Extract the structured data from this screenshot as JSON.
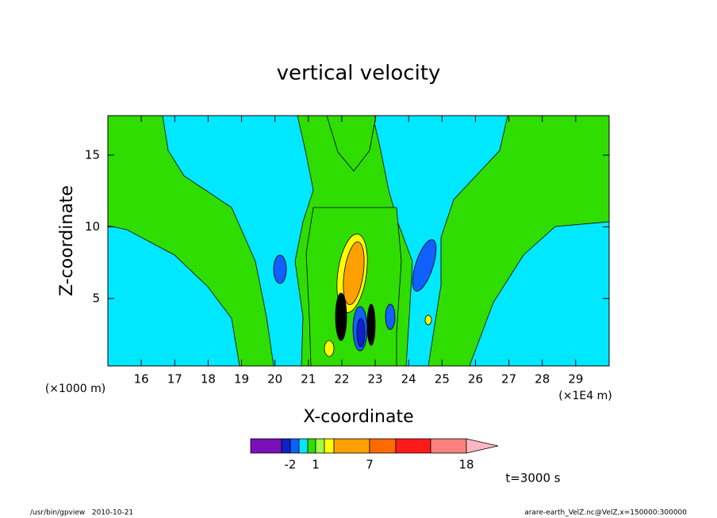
{
  "chart_data": {
    "type": "contour",
    "title": "vertical velocity",
    "xlabel": "X-coordinate",
    "ylabel": "Z-coordinate",
    "xunit": "(×1E4 m)",
    "yunit": "(×1000 m)",
    "xlim": [
      15,
      30
    ],
    "xticks": [
      16,
      17,
      18,
      19,
      20,
      21,
      22,
      23,
      24,
      25,
      26,
      27,
      28,
      29
    ],
    "ylim": [
      0.3,
      17.75
    ],
    "yticks": [
      5,
      10,
      15
    ],
    "colorbar": {
      "colors": [
        "#7a10b8",
        "#1020c8",
        "#1060ff",
        "#00e8ff",
        "#30dd00",
        "#a0ff40",
        "#ffff00",
        "#ffa000",
        "#ff6a00",
        "#ff1a1a",
        "#ff8080",
        "#ffb8c0"
      ],
      "levels": [
        null,
        null,
        -2,
        null,
        null,
        1,
        null,
        null,
        7,
        null,
        null,
        18
      ]
    },
    "annotation": "t=3000 s",
    "footer_left": "/usr/bin/gpview   2010-10-21",
    "footer_right": "arare-earth_VelZ.nc@VelZ,x=150000:300000"
  }
}
